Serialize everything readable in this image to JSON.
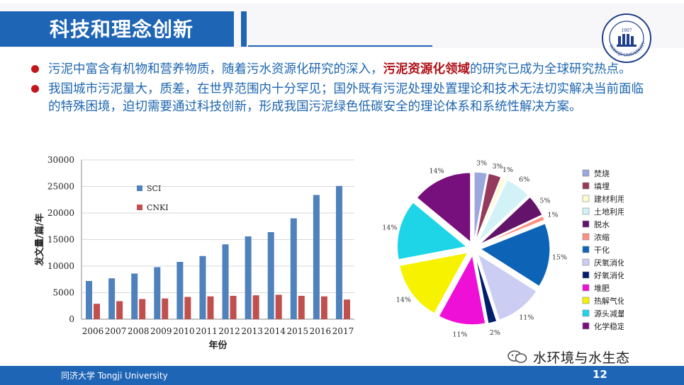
{
  "slide": {
    "title": "科技和理念创新",
    "bullets": [
      {
        "pre": "污泥中富含有机物和营养物质，随着污水资源化研究的深入，",
        "highlight": "污泥资源化领域",
        "post": "的研究已成为全球研究热点。"
      },
      {
        "pre": "我国城市污泥量大，质差，在世界范围内十分罕见；国外既有污泥处理处置理论和技术无法切实解决当前面临的特殊困境，迫切需要通过科技创新，形成我国污泥绿色低碳安全的理论体系和系统性解决方案。",
        "highlight": "",
        "post": ""
      }
    ],
    "footer": "同济大学 Tongji University",
    "page_number": "12",
    "watermark": "水环境与水生态",
    "logo_text": "TONGJI UNIVERSITY",
    "logo_year": "1907"
  },
  "colors": {
    "brand_blue": "#1f65b5",
    "bullet_red": "#c3161c",
    "sci": "#4f81bd",
    "cnki": "#c0504d"
  },
  "chart_data": [
    {
      "type": "bar",
      "categories": [
        "2006",
        "2007",
        "2008",
        "2009",
        "2010",
        "2011",
        "2012",
        "2013",
        "2014",
        "2015",
        "2016",
        "2017"
      ],
      "series": [
        {
          "name": "SCI",
          "values": [
            7200,
            7700,
            8600,
            9800,
            10800,
            11900,
            14100,
            15600,
            16400,
            19000,
            23400,
            25100
          ]
        },
        {
          "name": "CNKI",
          "values": [
            2900,
            3400,
            3800,
            3900,
            4200,
            4300,
            4400,
            4500,
            4600,
            4400,
            4300,
            3700
          ]
        }
      ],
      "xlabel": "年份",
      "ylabel": "发文量/篇/年",
      "ylim": [
        0,
        30000
      ],
      "yticks": [
        "0",
        "5000",
        "10000",
        "15000",
        "20000",
        "25000",
        "30000"
      ],
      "grid": true,
      "legend": "top-left"
    },
    {
      "type": "pie",
      "exploded": true,
      "slices": [
        {
          "label": "焚烧",
          "value": 3,
          "text": "3%",
          "color": "#9aa8dc"
        },
        {
          "label": "填埋",
          "value": 3,
          "text": "3%",
          "color": "#953a5c"
        },
        {
          "label": "建材利用",
          "value": 1,
          "text": "1%",
          "color": "#fffcd0"
        },
        {
          "label": "土地利用",
          "value": 6,
          "text": "6%",
          "color": "#d2f2f8"
        },
        {
          "label": "脱水",
          "value": 5,
          "text": "5%",
          "color": "#63146a"
        },
        {
          "label": "浓缩",
          "value": 1,
          "text": "1%",
          "color": "#ff8f7f"
        },
        {
          "label": "干化",
          "value": 15,
          "text": "15%",
          "color": "#0d63b6"
        },
        {
          "label": "厌氧消化",
          "value": 11,
          "text": "11%",
          "color": "#cccdf2"
        },
        {
          "label": "好氧消化",
          "value": 2,
          "text": "2%",
          "color": "#001d6e"
        },
        {
          "label": "堆肥",
          "value": 11,
          "text": "11%",
          "color": "#ee10d6"
        },
        {
          "label": "热解气化",
          "value": 14,
          "text": "14%",
          "color": "#f6f200"
        },
        {
          "label": "源头减量",
          "value": 14,
          "text": "14%",
          "color": "#1ed5e8"
        },
        {
          "label": "化学稳定",
          "value": 14,
          "text": "14%",
          "color": "#770f7c"
        }
      ],
      "legend": "right"
    }
  ]
}
